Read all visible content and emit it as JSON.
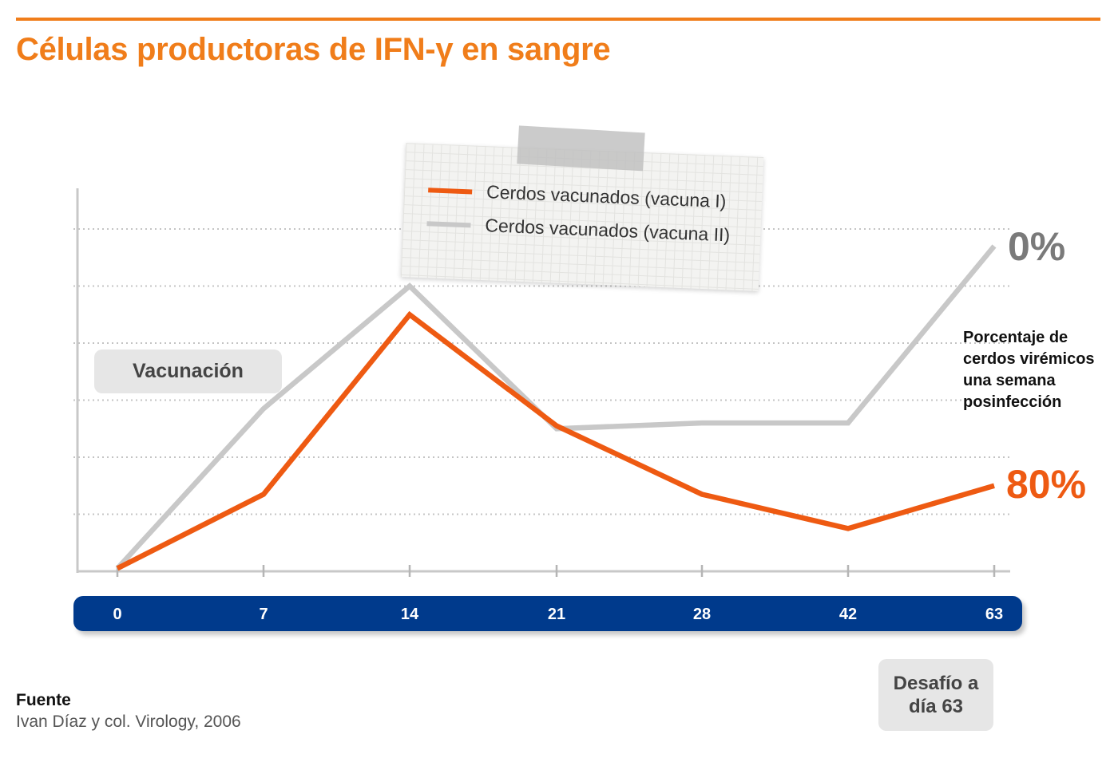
{
  "header": {
    "title": "Células productoras de IFN-γ en sangre"
  },
  "colors": {
    "accent": "#f07d1a",
    "series_orange": "#ee5a12",
    "series_gray": "#c8c8c8",
    "axis_bar": "#003a8c"
  },
  "annotations": {
    "vaccination": "Vacunación",
    "challenge": [
      "Desafío a",
      "día 63"
    ],
    "viremic_note": [
      "Porcentaje de",
      "cerdos virémicos",
      "una semana",
      "posinfección"
    ],
    "pct_vaccine_2": "0%",
    "pct_vaccine_1": "80%"
  },
  "source": {
    "heading": "Fuente",
    "text": "Ivan Díaz y col. Virology, 2006"
  },
  "chart_data": {
    "type": "line",
    "title": "Células productoras de IFN-γ en sangre",
    "xlabel": "",
    "ylabel": "",
    "x": [
      "0",
      "7",
      "14",
      "21",
      "28",
      "42",
      "63"
    ],
    "ylim": [
      0,
      6
    ],
    "grid": true,
    "legend_position": "top-center",
    "series": [
      {
        "name": "Cerdos vacunados (vacuna I)",
        "color": "#ee5a12",
        "values": [
          0.05,
          1.35,
          4.5,
          2.55,
          1.35,
          0.75,
          1.5
        ]
      },
      {
        "name": "Cerdos vacunados (vacuna II)",
        "color": "#c8c8c8",
        "values": [
          0.05,
          2.85,
          5.0,
          2.5,
          2.6,
          2.6,
          5.7
        ]
      }
    ]
  }
}
